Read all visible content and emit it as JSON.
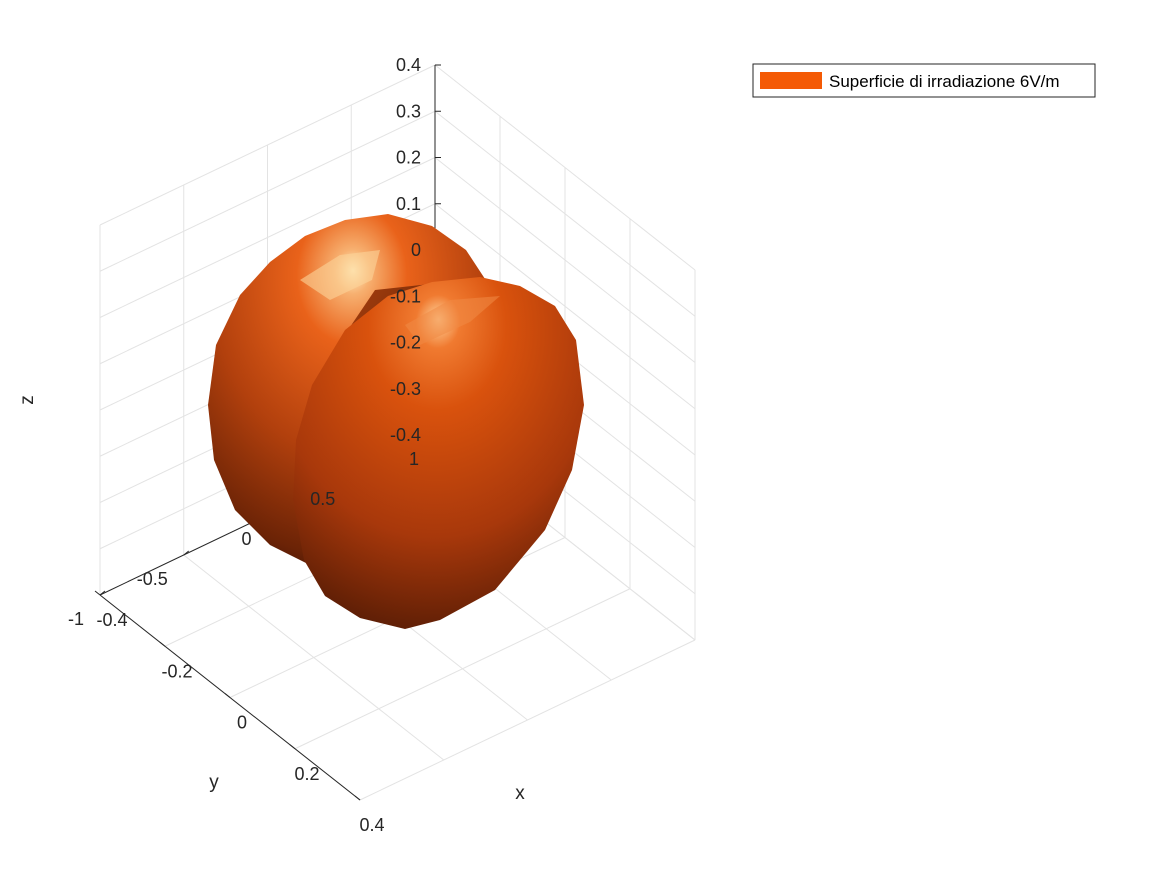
{
  "chart_data": {
    "type": "surface3d",
    "title": "",
    "xlabel": "x",
    "ylabel": "y",
    "zlabel": "z",
    "xlim": [
      -0.4,
      0.4
    ],
    "ylim": [
      -1,
      1
    ],
    "zlim": [
      -0.4,
      0.4
    ],
    "x_ticks": [
      "-0.4",
      "-0.2",
      "0",
      "0.2",
      "0.4"
    ],
    "y_ticks": [
      "-1",
      "-0.5",
      "0",
      "0.5",
      "1"
    ],
    "z_ticks": [
      "0.4",
      "0.3",
      "0.2",
      "0.1",
      "0",
      "-0.1",
      "-0.2",
      "-0.3",
      "-0.4"
    ],
    "grid": true,
    "legend": {
      "placement": "top-right",
      "entries": [
        {
          "label": "Superficie di irradiazione 6V/m",
          "color": "#f45a05"
        }
      ]
    },
    "series": [
      {
        "name": "Superficie di irradiazione 6V/m",
        "shape": "two-lobe closed surface",
        "color": "#e0500a"
      }
    ]
  }
}
